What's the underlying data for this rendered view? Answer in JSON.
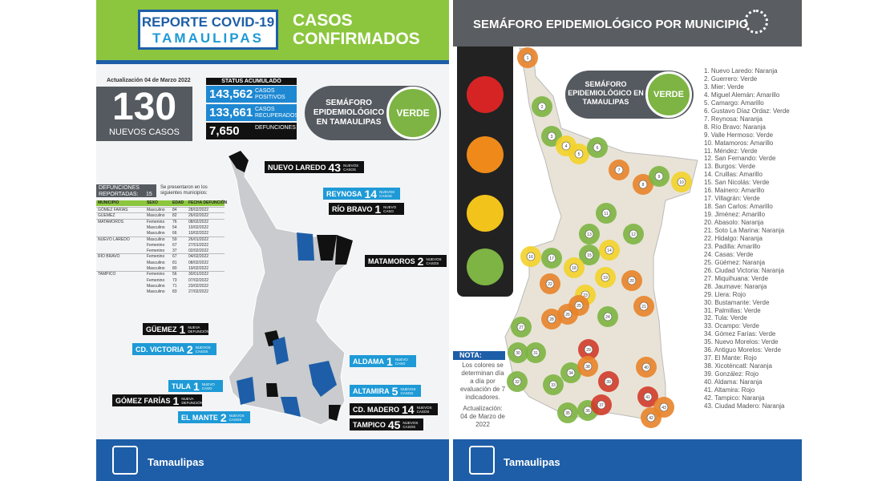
{
  "left": {
    "header": {
      "title1": "REPORTE COVID-19",
      "title2": "TAMAULIPAS",
      "heading": "CASOS CONFIRMADOS"
    },
    "update": "Actualización 04 de Marzo 2022",
    "new_cases": {
      "value": "130",
      "label": "NUEVOS CASOS"
    },
    "status": {
      "title": "STATUS ACUMULADO",
      "items": [
        {
          "value": "143,562",
          "label": "CASOS POSITIVOS",
          "color": "#1e88d2"
        },
        {
          "value": "133,661",
          "label": "CASOS RECUPERADOS",
          "color": "#1e88d2"
        },
        {
          "value": "7,650",
          "label": "DEFUNCIONES",
          "color": "#111111"
        }
      ]
    },
    "semaforo": {
      "label": "SEMÁFORO EPIDEMIOLÓGICO EN TAMAULIPAS",
      "status": "VERDE"
    },
    "deaths": {
      "title": "DEFUNCIONES REPORTADAS:",
      "count": "15",
      "note": "Se presentaron en los siguientes municipios:",
      "columns": [
        "MUNICIPIO",
        "SEXO",
        "EDAD",
        "FECHA DEFUNCIÓN"
      ],
      "groups": [
        {
          "municipio": "GÓMEZ FARÍAS",
          "rows": [
            [
              "Masculino",
              "84",
              "28/02/2022"
            ]
          ]
        },
        {
          "municipio": "GÜEMEZ",
          "rows": [
            [
              "Masculino",
              "82",
              "26/02/2022"
            ]
          ]
        },
        {
          "municipio": "MATAMOROS",
          "rows": [
            [
              "Femenino",
              "76",
              "08/02/2022"
            ],
            [
              "Masculino",
              "54",
              "10/02/2022"
            ],
            [
              "Masculino",
              "66",
              "10/02/2022"
            ]
          ]
        },
        {
          "municipio": "NUEVO LAREDO",
          "rows": [
            [
              "Masculino",
              "59",
              "26/01/2022"
            ],
            [
              "Femenino",
              "67",
              "27/01/2022"
            ],
            [
              "Femenino",
              "37",
              "02/02/2022"
            ]
          ]
        },
        {
          "municipio": "RÍO BRAVO",
          "rows": [
            [
              "Femenino",
              "67",
              "04/02/2022"
            ],
            [
              "Masculino",
              "81",
              "08/02/2022"
            ],
            [
              "Masculino",
              "80",
              "19/02/2022"
            ]
          ]
        },
        {
          "municipio": "TAMPICO",
          "rows": [
            [
              "Femenino",
              "56",
              "30/01/2022"
            ],
            [
              "Femenino",
              "73",
              "07/02/2022"
            ],
            [
              "Masculino",
              "71",
              "23/02/2022"
            ],
            [
              "Masculino",
              "83",
              "27/02/2022"
            ]
          ]
        }
      ]
    },
    "callouts": [
      {
        "name": "NUEVO LAREDO",
        "count": "43",
        "note": "NUEVOS CASOS",
        "color": "#111111"
      },
      {
        "name": "REYNOSA",
        "count": "14",
        "note": "NUEVOS CASOS",
        "color": "#1e9ad6"
      },
      {
        "name": "RÍO BRAVO",
        "count": "1",
        "note": "NUEVO CASO",
        "color": "#111111"
      },
      {
        "name": "MATAMOROS",
        "count": "2",
        "note": "NUEVOS CASOS",
        "color": "#111111"
      },
      {
        "name": "GÜEMEZ",
        "count": "1",
        "note": "NUEVA DEFUNCIÓN",
        "color": "#111111"
      },
      {
        "name": "CD. VICTORIA",
        "count": "2",
        "note": "NUEVOS CASOS",
        "color": "#1e9ad6"
      },
      {
        "name": "ALDAMA",
        "count": "1",
        "note": "NUEVO CASO",
        "color": "#1e9ad6"
      },
      {
        "name": "ALTAMIRA",
        "count": "5",
        "note": "NUEVOS CASOS",
        "color": "#1e9ad6"
      },
      {
        "name": "TULA",
        "count": "1",
        "note": "NUEVO CASO",
        "color": "#1e9ad6"
      },
      {
        "name": "GÓMEZ FARÍAS",
        "count": "1",
        "note": "NUEVA DEFUNCIÓN",
        "color": "#111111"
      },
      {
        "name": "CD. MADERO",
        "count": "14",
        "note": "NUEVOS CASOS",
        "color": "#111111"
      },
      {
        "name": "EL MANTE",
        "count": "2",
        "note": "NUEVOS CASOS",
        "color": "#1e9ad6"
      },
      {
        "name": "TAMPICO",
        "count": "45",
        "note": "NUEVOS CASOS",
        "color": "#111111"
      }
    ],
    "footer": "Tamaulipas"
  },
  "right": {
    "title": "SEMÁFORO EPIDEMIOLÓGICO POR MUNICIPIO",
    "semaforo": {
      "label": "SEMÁFORO EPIDEMIOLÓGICO EN TAMAULIPAS",
      "status": "VERDE"
    },
    "note_title": "NOTA:",
    "note": "Los colores se determinan día a día por evaluación de 7 indicadores.",
    "update": "Actualización: 04 de Marzo de 2022",
    "status_colors": {
      "Naranja": "#e8832a",
      "Amarillo": "#f3d12a",
      "Verde": "#7db443",
      "Rojo": "#d23b2a"
    },
    "municipalities": [
      {
        "number": 1,
        "label": "1. Nuevo Laredo: Naranja",
        "status": "Naranja"
      },
      {
        "number": 2,
        "label": "2. Guerrero: Verde",
        "status": "Verde"
      },
      {
        "number": 3,
        "label": "3. Mier: Verde",
        "status": "Verde"
      },
      {
        "number": 4,
        "label": "4. Miguel Alemán: Amarillo",
        "status": "Amarillo"
      },
      {
        "number": 5,
        "label": "5. Camargo: Amarillo",
        "status": "Amarillo"
      },
      {
        "number": 6,
        "label": "6. Gustavo Díaz Ordaz: Verde",
        "status": "Verde"
      },
      {
        "number": 7,
        "label": "7. Reynosa: Naranja",
        "status": "Naranja"
      },
      {
        "number": 8,
        "label": "8. Río Bravo: Naranja",
        "status": "Naranja"
      },
      {
        "number": 9,
        "label": "9. Valle Hermoso: Verde",
        "status": "Verde"
      },
      {
        "number": 10,
        "label": "10. Matamoros: Amarillo",
        "status": "Amarillo"
      },
      {
        "number": 11,
        "label": "11. Méndez: Verde",
        "status": "Verde"
      },
      {
        "number": 12,
        "label": "12. San Fernando: Verde",
        "status": "Verde"
      },
      {
        "number": 13,
        "label": "13. Burgos: Verde",
        "status": "Verde"
      },
      {
        "number": 14,
        "label": "14. Cruillas: Amarillo",
        "status": "Amarillo"
      },
      {
        "number": 15,
        "label": "15. San Nicolás: Verde",
        "status": "Verde"
      },
      {
        "number": 16,
        "label": "16. Mainero: Amarillo",
        "status": "Amarillo"
      },
      {
        "number": 17,
        "label": "17. Villagrán: Verde",
        "status": "Verde"
      },
      {
        "number": 18,
        "label": "18. San Carlos: Amarillo",
        "status": "Amarillo"
      },
      {
        "number": 19,
        "label": "19. Jiménez: Amarillo",
        "status": "Amarillo"
      },
      {
        "number": 20,
        "label": "20. Abasolo: Naranja",
        "status": "Naranja"
      },
      {
        "number": 21,
        "label": "21. Soto La Marina: Naranja",
        "status": "Naranja"
      },
      {
        "number": 22,
        "label": "22. Hidalgo: Naranja",
        "status": "Naranja"
      },
      {
        "number": 23,
        "label": "23. Padilla: Amarillo",
        "status": "Amarillo"
      },
      {
        "number": 24,
        "label": "24. Casas: Verde",
        "status": "Verde"
      },
      {
        "number": 25,
        "label": "25. Güémez: Naranja",
        "status": "Naranja"
      },
      {
        "number": 26,
        "label": "26. Ciudad Victoria: Naranja",
        "status": "Naranja"
      },
      {
        "number": 27,
        "label": "27. Miquihuana: Verde",
        "status": "Verde"
      },
      {
        "number": 28,
        "label": "28. Jaumave: Naranja",
        "status": "Naranja"
      },
      {
        "number": 29,
        "label": "29. Llera: Rojo",
        "status": "Rojo"
      },
      {
        "number": 30,
        "label": "30. Bustamante: Verde",
        "status": "Verde"
      },
      {
        "number": 31,
        "label": "31. Palmillas: Verde",
        "status": "Verde"
      },
      {
        "number": 32,
        "label": "32. Tula: Verde",
        "status": "Verde"
      },
      {
        "number": 33,
        "label": "33. Ocampo: Verde",
        "status": "Verde"
      },
      {
        "number": 34,
        "label": "34. Gómez Farías: Verde",
        "status": "Verde"
      },
      {
        "number": 35,
        "label": "35. Nuevo Morelos: Verde",
        "status": "Verde"
      },
      {
        "number": 36,
        "label": "36. Antiguo Morelos: Verde",
        "status": "Verde"
      },
      {
        "number": 37,
        "label": "37. El Mante: Rojo",
        "status": "Rojo"
      },
      {
        "number": 38,
        "label": "38. Xicoténcatl: Naranja",
        "status": "Naranja"
      },
      {
        "number": 39,
        "label": "39. González: Rojo",
        "status": "Rojo"
      },
      {
        "number": 40,
        "label": "40. Aldama: Naranja",
        "status": "Naranja"
      },
      {
        "number": 41,
        "label": "41. Altamira: Rojo",
        "status": "Rojo"
      },
      {
        "number": 42,
        "label": "42. Tampico: Naranja",
        "status": "Naranja"
      },
      {
        "number": 43,
        "label": "43. Ciudad Madero: Naranja",
        "status": "Naranja"
      }
    ],
    "footer": "Tamaulipas"
  }
}
